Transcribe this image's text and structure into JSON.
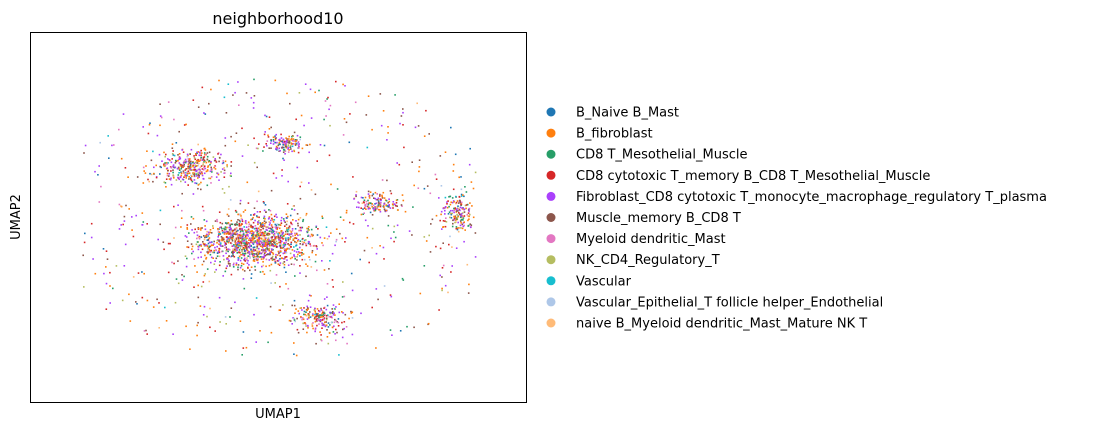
{
  "chart_data": {
    "type": "scatter",
    "title": "neighborhood10",
    "xlabel": "UMAP1",
    "ylabel": "UMAP2",
    "grid": false,
    "ticks": false,
    "legend_placement": "right",
    "xlim": [
      -10,
      10
    ],
    "ylim": [
      -10,
      10
    ],
    "categories": [
      {
        "name": "B_Naive B_Mast",
        "color": "#1f77b4"
      },
      {
        "name": "B_fibroblast",
        "color": "#ff7f0e"
      },
      {
        "name": "CD8 T_Mesothelial_Muscle",
        "color": "#279e68"
      },
      {
        "name": "CD8 cytotoxic T_memory B_CD8 T_Mesothelial_Muscle",
        "color": "#d62728"
      },
      {
        "name": "Fibroblast_CD8 cytotoxic T_monocyte_macrophage_regulatory T_plasma",
        "color": "#aa40fc"
      },
      {
        "name": "Muscle_memory B_CD8 T",
        "color": "#8c564b"
      },
      {
        "name": "Myeloid dendritic_Mast",
        "color": "#e377c2"
      },
      {
        "name": "NK_CD4_Regulatory_T",
        "color": "#b5bd61"
      },
      {
        "name": "Vascular",
        "color": "#17becf"
      },
      {
        "name": "Vascular_Epithelial_T follicle helper_Endothelial",
        "color": "#aec7e8"
      },
      {
        "name": "naive B_Myeloid dendritic_Mast_Mature NK T",
        "color": "#ffbb78"
      }
    ],
    "point_mix": [
      0.05,
      0.2,
      0.08,
      0.12,
      0.2,
      0.13,
      0.08,
      0.06,
      0.02,
      0.02,
      0.04
    ],
    "clusters": [
      {
        "center": [
          -1.0,
          -1.3
        ],
        "spread": [
          2.3,
          1.4
        ],
        "n": 1300
      },
      {
        "center": [
          -3.6,
          2.7
        ],
        "spread": [
          1.4,
          1.0
        ],
        "n": 350
      },
      {
        "center": [
          0.3,
          4.0
        ],
        "spread": [
          0.8,
          0.5
        ],
        "n": 140
      },
      {
        "center": [
          4.0,
          0.7
        ],
        "spread": [
          0.9,
          0.6
        ],
        "n": 150
      },
      {
        "center": [
          7.2,
          0.3
        ],
        "spread": [
          0.6,
          1.1
        ],
        "n": 160
      },
      {
        "center": [
          1.6,
          -5.4
        ],
        "spread": [
          1.0,
          0.8
        ],
        "n": 200
      },
      {
        "center": [
          0.0,
          0.0
        ],
        "spread": [
          8.0,
          7.5
        ],
        "n": 600
      }
    ],
    "random_seed": 10
  }
}
